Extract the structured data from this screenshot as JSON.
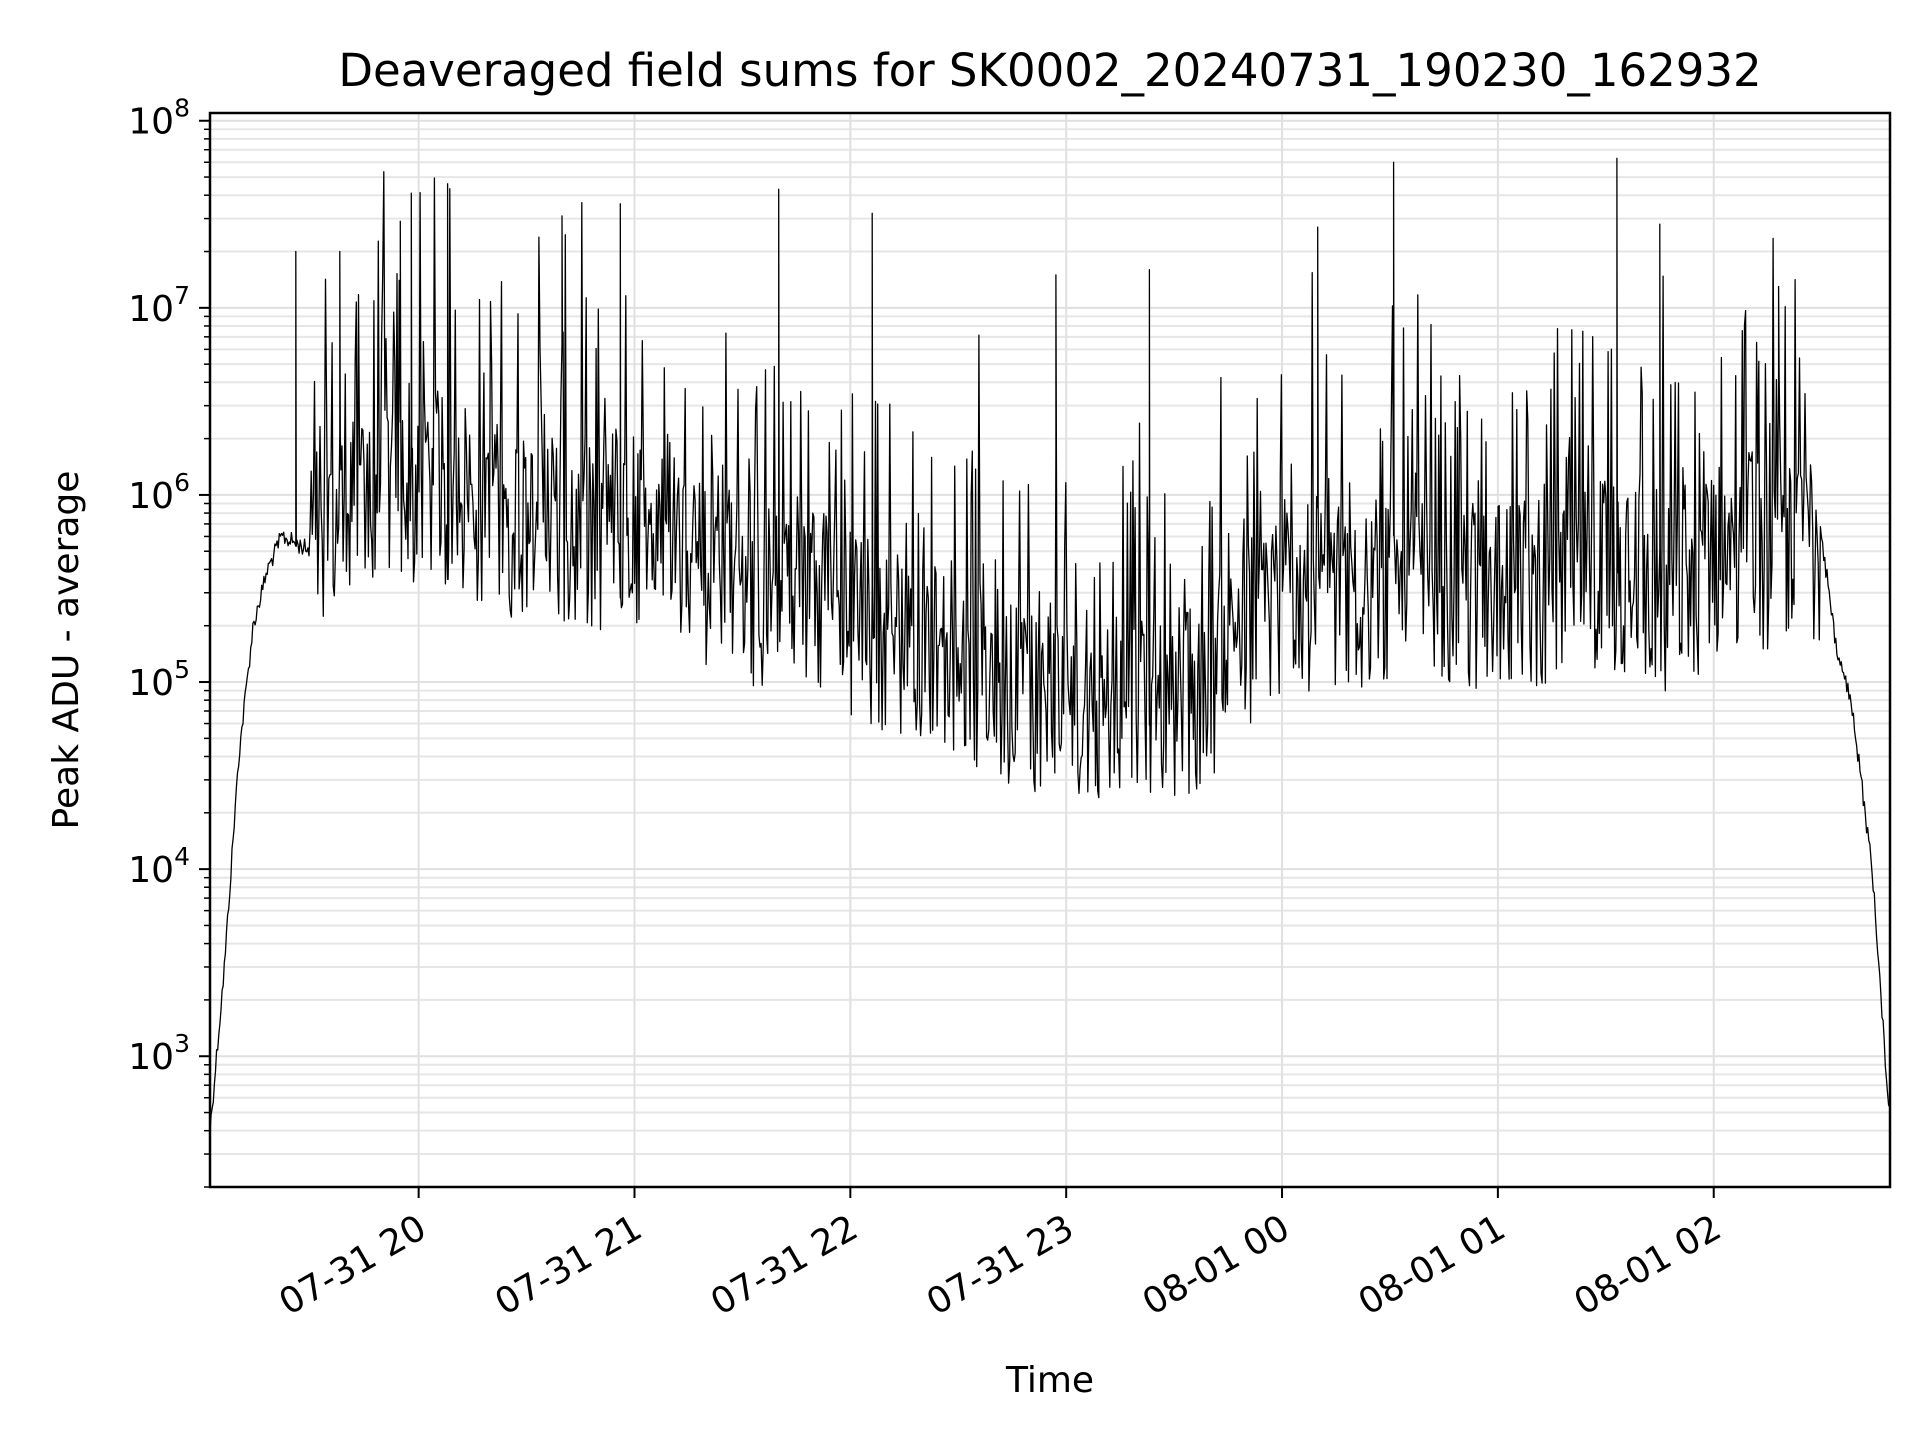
{
  "chart_data": {
    "type": "line",
    "title": "Deaveraged field sums for SK0002_20240731_190230_162932",
    "xlabel": "Time",
    "ylabel": "Peak ADU - average",
    "yscale": "log",
    "ylim": [
      200,
      110000000
    ],
    "xlim": [
      "07-31 19:02",
      "08-01 02:49"
    ],
    "x_ticks": [
      "07-31 20",
      "07-31 21",
      "07-31 22",
      "07-31 23",
      "08-01 00",
      "08-01 01",
      "08-01 02"
    ],
    "x_tick_labels_rotation": 30,
    "y_ticks": [
      {
        "base": "10",
        "exp": "3",
        "value": 1000
      },
      {
        "base": "10",
        "exp": "4",
        "value": 10000
      },
      {
        "base": "10",
        "exp": "5",
        "value": 100000
      },
      {
        "base": "10",
        "exp": "6",
        "value": 1000000
      },
      {
        "base": "10",
        "exp": "7",
        "value": 10000000
      },
      {
        "base": "10",
        "exp": "8",
        "value": 100000000
      }
    ],
    "grid": true,
    "line_color": "#000000",
    "series": [
      {
        "x": [
          "07-31 19:02",
          "07-31 19:06",
          "07-31 19:10",
          "07-31 19:14",
          "07-31 19:18",
          "07-31 19:22",
          "07-31 19:26",
          "07-31 19:30",
          "07-31 19:34",
          "07-31 19:38",
          "07-31 19:42",
          "07-31 19:46",
          "07-31 19:50",
          "07-31 19:54",
          "07-31 19:58",
          "07-31 20:02",
          "07-31 20:06",
          "07-31 20:10",
          "07-31 20:15",
          "07-31 20:20",
          "07-31 20:25",
          "07-31 20:30",
          "07-31 20:35",
          "07-31 20:40",
          "07-31 20:45",
          "07-31 20:50",
          "07-31 20:55",
          "07-31 21:00",
          "07-31 21:05",
          "07-31 21:10",
          "07-31 21:15",
          "07-31 21:20",
          "07-31 21:25",
          "07-31 21:30",
          "07-31 21:35",
          "07-31 21:40",
          "07-31 21:45",
          "07-31 21:50",
          "07-31 21:55",
          "07-31 22:00",
          "07-31 22:10",
          "07-31 22:20",
          "07-31 22:30",
          "07-31 22:40",
          "07-31 22:50",
          "07-31 23:00",
          "07-31 23:10",
          "07-31 23:20",
          "07-31 23:30",
          "07-31 23:40",
          "07-31 23:50",
          "08-01 00:00",
          "08-01 00:10",
          "08-01 00:20",
          "08-01 00:30",
          "08-01 00:40",
          "08-01 00:50",
          "08-01 01:00",
          "08-01 01:10",
          "08-01 01:20",
          "08-01 01:30",
          "08-01 01:40",
          "08-01 01:50",
          "08-01 02:00",
          "08-01 02:05",
          "08-01 02:10",
          "08-01 02:15",
          "08-01 02:20",
          "08-01 02:25",
          "08-01 02:30",
          "08-01 02:34",
          "08-01 02:38",
          "08-01 02:41",
          "08-01 02:44",
          "08-01 02:46",
          "08-01 02:48",
          "08-01 02:49"
        ],
        "y": [
          400,
          3000,
          40000,
          200000,
          400000,
          600000,
          550000,
          500000,
          600000,
          800000,
          1000000,
          1200000,
          1500000,
          1300000,
          1000000,
          1200000,
          1400000,
          1100000,
          900000,
          1000000,
          800000,
          900000,
          1100000,
          700000,
          800000,
          700000,
          900000,
          800000,
          600000,
          700000,
          500000,
          450000,
          600000,
          400000,
          350000,
          300000,
          400000,
          350000,
          300000,
          250000,
          200000,
          180000,
          150000,
          120000,
          100000,
          100000,
          90000,
          95000,
          85000,
          110000,
          200000,
          300000,
          350000,
          300000,
          400000,
          350000,
          300000,
          400000,
          350000,
          400000,
          450000,
          400000,
          300000,
          500000,
          600000,
          600000,
          550000,
          600000,
          700000,
          600000,
          150000,
          80000,
          30000,
          10000,
          3000,
          800,
          500
        ]
      }
    ],
    "spikes": [
      {
        "x": "07-31 19:26",
        "y": 20000000
      },
      {
        "x": "07-31 19:38",
        "y": 20000000
      },
      {
        "x": "07-31 19:55",
        "y": 29000000
      },
      {
        "x": "07-31 19:58",
        "y": 41000000
      },
      {
        "x": "07-31 20:08",
        "y": 46000000
      },
      {
        "x": "07-31 20:40",
        "y": 31000000
      },
      {
        "x": "07-31 20:56",
        "y": 36000000
      },
      {
        "x": "07-31 21:40",
        "y": 43000000
      },
      {
        "x": "07-31 22:06",
        "y": 32000000
      },
      {
        "x": "07-31 22:57",
        "y": 15000000
      },
      {
        "x": "07-31 23:23",
        "y": 16000000
      },
      {
        "x": "08-01 00:10",
        "y": 27000000
      },
      {
        "x": "08-01 00:31",
        "y": 60000000
      },
      {
        "x": "08-01 01:33",
        "y": 63000000
      },
      {
        "x": "08-01 01:45",
        "y": 28000000
      },
      {
        "x": "08-01 02:18",
        "y": 13000000
      }
    ]
  }
}
